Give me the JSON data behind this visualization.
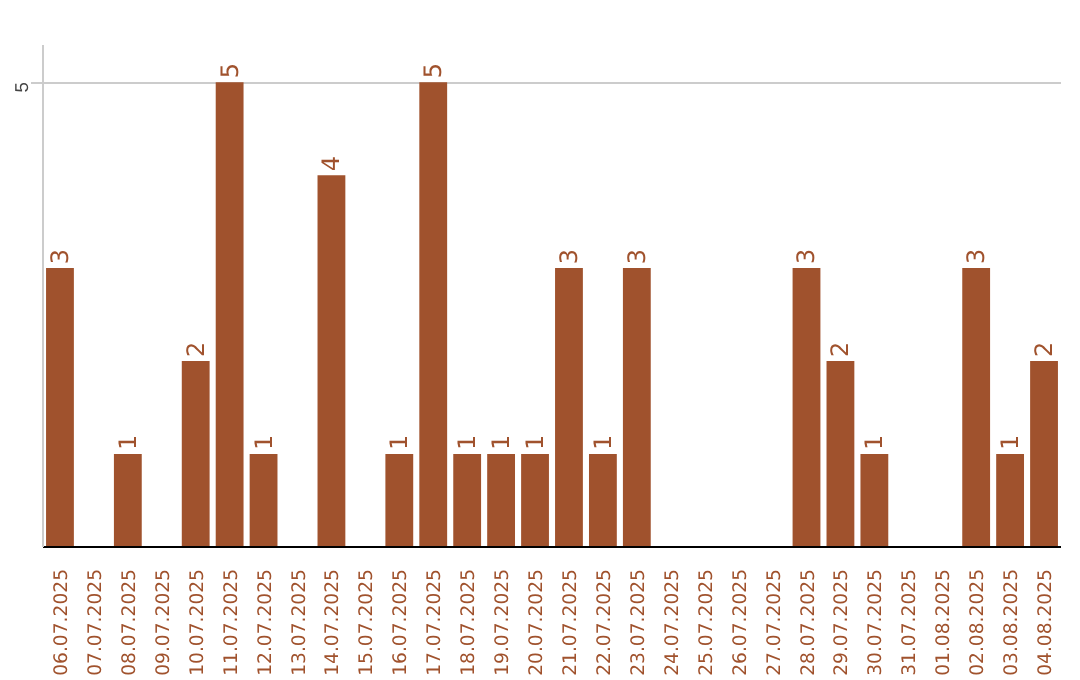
{
  "chart_data": {
    "type": "bar",
    "categories": [
      "06.07.2025",
      "07.07.2025",
      "08.07.2025",
      "09.07.2025",
      "10.07.2025",
      "11.07.2025",
      "12.07.2025",
      "13.07.2025",
      "14.07.2025",
      "15.07.2025",
      "16.07.2025",
      "17.07.2025",
      "18.07.2025",
      "19.07.2025",
      "20.07.2025",
      "21.07.2025",
      "22.07.2025",
      "23.07.2025",
      "24.07.2025",
      "25.07.2025",
      "26.07.2025",
      "27.07.2025",
      "28.07.2025",
      "29.07.2025",
      "30.07.2025",
      "31.07.2025",
      "01.08.2025",
      "02.08.2025",
      "03.08.2025",
      "04.08.2025"
    ],
    "values": [
      3,
      0,
      1,
      0,
      2,
      5,
      1,
      0,
      4,
      0,
      1,
      5,
      1,
      1,
      1,
      3,
      1,
      3,
      0,
      0,
      0,
      0,
      3,
      2,
      1,
      0,
      0,
      3,
      1,
      2
    ],
    "value_labels": [
      "3",
      null,
      "1",
      null,
      "2",
      "5",
      "1",
      null,
      "4",
      null,
      "1",
      "5",
      "1",
      "1",
      "1",
      "3",
      "1",
      "3",
      null,
      null,
      null,
      null,
      "3",
      "2",
      "1",
      null,
      null,
      "3",
      "1",
      "2"
    ],
    "color": "#a0522d",
    "ylim": [
      0,
      5.4
    ],
    "yticks": [
      5
    ],
    "grid": "y"
  }
}
